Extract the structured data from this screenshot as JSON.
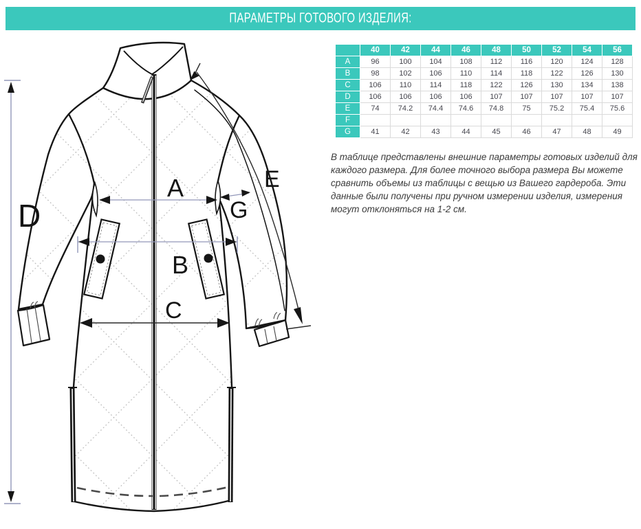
{
  "header": {
    "title": "ПАРАМЕТРЫ ГОТОВОГО ИЗДЕЛИЯ:"
  },
  "colors": {
    "accent": "#3bc8bc",
    "table_border": "#dadada",
    "body_text": "#3a3a3a",
    "dimension_line": "#9297b9",
    "drawing_line": "#161616"
  },
  "diagram": {
    "name": "coat-technical-drawing",
    "labels": {
      "a": "A",
      "b": "B",
      "c": "C",
      "d": "D",
      "e": "E",
      "g": "G"
    }
  },
  "size_table": {
    "columns": [
      "40",
      "42",
      "44",
      "46",
      "48",
      "50",
      "52",
      "54",
      "56"
    ],
    "rows": [
      {
        "label": "A",
        "values": [
          "96",
          "100",
          "104",
          "108",
          "112",
          "116",
          "120",
          "124",
          "128"
        ]
      },
      {
        "label": "B",
        "values": [
          "98",
          "102",
          "106",
          "110",
          "114",
          "118",
          "122",
          "126",
          "130"
        ]
      },
      {
        "label": "C",
        "values": [
          "106",
          "110",
          "114",
          "118",
          "122",
          "126",
          "130",
          "134",
          "138"
        ]
      },
      {
        "label": "D",
        "values": [
          "106",
          "106",
          "106",
          "106",
          "107",
          "107",
          "107",
          "107",
          "107"
        ]
      },
      {
        "label": "E",
        "values": [
          "74",
          "74.2",
          "74.4",
          "74.6",
          "74.8",
          "75",
          "75.2",
          "75.4",
          "75.6"
        ]
      },
      {
        "label": "F",
        "values": [
          "",
          "",
          "",
          "",
          "",
          "",
          "",
          "",
          ""
        ]
      },
      {
        "label": "G",
        "values": [
          "41",
          "42",
          "43",
          "44",
          "45",
          "46",
          "47",
          "48",
          "49"
        ]
      }
    ]
  },
  "description": "В таблице представлены внешние параметры готовых изделий для каждого размера. Для более точного выбора размера Вы можете сравнить объемы из таблицы с вещью из Вашего гардероба. Эти данные были получены при ручном измерении изделия, измерения могут отклоняться на 1-2 см."
}
